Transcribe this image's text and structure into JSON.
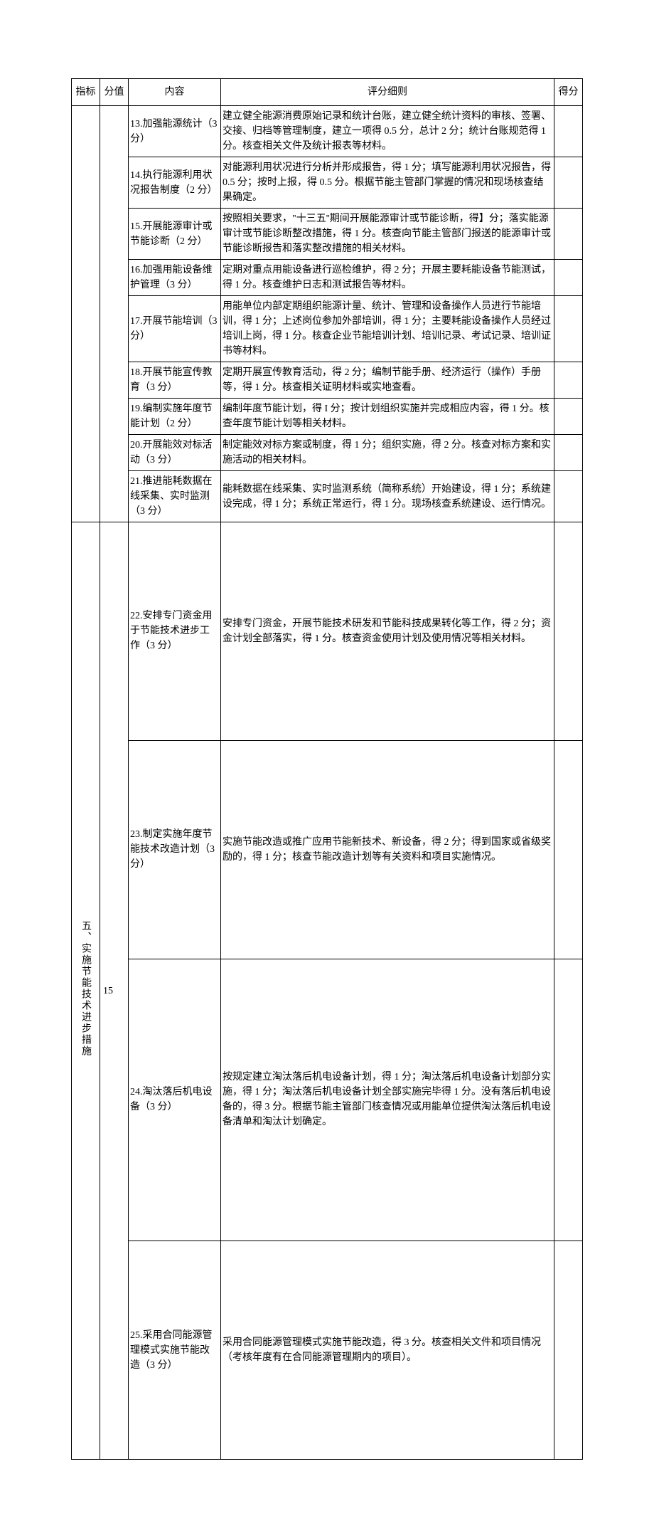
{
  "headers": {
    "indicator": "指标",
    "score_value": "分值",
    "content": "内容",
    "criteria": "评分细则",
    "score": "得分"
  },
  "section1": {
    "rows": [
      {
        "content": "13.加强能源统计（3分）",
        "criteria": "建立健全能源消费原始记录和统计台账，建立健全统计资料的审核、签署、交接、归档等管理制度，建立一项得 0.5 分，总计 2 分；统计台账规范得 1 分。核查相关文件及统计报表等材料。"
      },
      {
        "content": "14.执行能源利用状况报告制度（2 分）",
        "criteria": "对能源利用状况进行分析并形成报告，得 1 分；填写能源利用状况报告，得 0.5 分；按时上报，得 0.5 分。根据节能主管部门掌握的情况和现场核查结果确定。"
      },
      {
        "content": "15.开展能源审计或节能诊断（2 分）",
        "criteria": "按照相关要求，\"十三五''期间开展能源审计或节能诊断，得】分；落实能源审计或节能诊断整改措施，得 1 分。核查向节能主管部门报送的能源审计或节能诊断报告和落实整改措施的相关材料。"
      },
      {
        "content": "16.加强用能设备维护管理（3 分）",
        "criteria": "定期对重点用能设备进行巡检维护，得 2 分；开展主要耗能设备节能测试，得 1 分。核查维护日志和测试报告等材料。"
      },
      {
        "content": "17.开展节能培训（3分）",
        "criteria": "用能单位内部定期组织能源计量、统计、管理和设备操作人员进行节能培训，得 1 分；上述岗位参加外部培训，得 1 分；主要耗能设备操作人员经过培训上岗，得 1 分。核查企业节能培训计划、培训记录、考试记录、培训证书等材料。"
      },
      {
        "content": "18.开展节能宣传教育（3 分）",
        "criteria": "定期开展宣传教育活动，得 2 分；编制节能手册、经济运行（操作）手册等，得 1 分。核查相关证明材料或实地查看。"
      },
      {
        "content": "19.编制实施年度节能计划（2 分）",
        "criteria": "编制年度节能计划，得 I 分；按计划组织实施并完成相应内容，得 1 分。核查年度节能计划等相关材料。"
      },
      {
        "content": "20.开展能效对标活动（3 分）",
        "criteria": "制定能效对标方案或制度，得 1 分；组织实施，得 2 分。核查对标方案和实施活动的相关材料。"
      },
      {
        "content": "21.推进能耗数据在线采集、实时监测（3 分）",
        "criteria": "能耗数据在线采集、实时监测系统（简称系统）开始建设，得 1 分；系统建设完成，得 1 分；系统正常运行，得 1 分。现场核查系统建设、运行情况。"
      }
    ]
  },
  "section2": {
    "indicator": "五、实施节能技术进步措施",
    "score_value": "15",
    "rows": [
      {
        "content": "22.安排专门资金用于节能技术进步工作（3 分）",
        "criteria": "安排专门资金，开展节能技术研发和节能科技成果转化等工作，得 2 分；资金计划全部落实，得 1 分。核查资金使用计划及使用情况等相关材料。"
      },
      {
        "content": "23.制定实施年度节能技术改造计划（3分）",
        "criteria": "实施节能改造或推广应用节能新技术、新设备，得 2 分；得到国家或省级奖励的，得 1 分；核查节能改造计划等有关资料和项目实施情况。"
      },
      {
        "content": "24.淘汰落后机电设备（3 分）",
        "criteria": "按规定建立淘汰落后机电设备计划，得 1 分；淘汰落后机电设备计划部分实施，得 1 分；淘汰落后机电设备计划全部实施完毕得 1 分。没有落后机电设备的，得 3 分。根据节能主管部门核查情况或用能单位提供淘汰落后机电设备清单和淘汰计划确定。"
      },
      {
        "content": "25.采用合同能源管理模式实施节能改造（3 分）",
        "criteria": "采用合同能源管理模式实施节能改造，得 3 分。核查相关文件和项目情况（考核年度有在合同能源管理期内的项目）。"
      }
    ]
  }
}
